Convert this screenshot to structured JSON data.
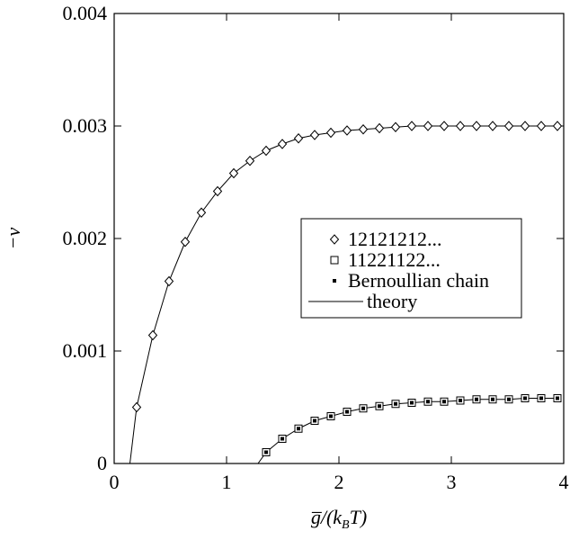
{
  "chart_data": {
    "type": "scatter-line",
    "xlabel": [
      "g̅/(k",
      "B",
      "T)"
    ],
    "ylabel": "−ν",
    "xlim": [
      0,
      4
    ],
    "ylim": [
      0,
      0.004
    ],
    "xticks": [
      0,
      1,
      2,
      3,
      4
    ],
    "yticks": [
      0,
      0.001,
      0.002,
      0.003,
      0.004
    ],
    "series": [
      {
        "name": "12121212...",
        "marker": "diamond",
        "color": "#000",
        "x": [
          0.2,
          0.344,
          0.488,
          0.632,
          0.776,
          0.92,
          1.064,
          1.208,
          1.352,
          1.496,
          1.64,
          1.784,
          1.928,
          2.072,
          2.216,
          2.36,
          2.504,
          2.648,
          2.792,
          2.936,
          3.08,
          3.224,
          3.368,
          3.512,
          3.656,
          3.8,
          3.944
        ],
        "values": [
          0.0005,
          0.00114,
          0.00162,
          0.00197,
          0.00223,
          0.00242,
          0.00258,
          0.00269,
          0.00278,
          0.00284,
          0.00289,
          0.00292,
          0.00294,
          0.00296,
          0.00297,
          0.00298,
          0.00299,
          0.003,
          0.003,
          0.003,
          0.003,
          0.003,
          0.003,
          0.003,
          0.003,
          0.003,
          0.003
        ]
      },
      {
        "name": "11221122...",
        "marker": "square",
        "color": "#000",
        "x": [
          1.352,
          1.496,
          1.64,
          1.784,
          1.928,
          2.072,
          2.216,
          2.36,
          2.504,
          2.648,
          2.792,
          2.936,
          3.08,
          3.224,
          3.368,
          3.512,
          3.656,
          3.8,
          3.944
        ],
        "values": [
          0.0001,
          0.00022,
          0.00031,
          0.00038,
          0.00042,
          0.00046,
          0.00049,
          0.00051,
          0.00053,
          0.00054,
          0.00055,
          0.00055,
          0.00056,
          0.00057,
          0.00057,
          0.00057,
          0.00058,
          0.00058,
          0.00058
        ]
      },
      {
        "name": "Bernoullian chain",
        "marker": "dot",
        "color": "#000",
        "x": [
          1.352,
          1.496,
          1.64,
          1.784,
          1.928,
          2.072,
          2.216,
          2.36,
          2.504,
          2.648,
          2.792,
          2.936,
          3.08,
          3.224,
          3.368,
          3.512,
          3.656,
          3.8,
          3.944
        ],
        "values": [
          0.0001,
          0.00022,
          0.00031,
          0.00038,
          0.00042,
          0.00046,
          0.00049,
          0.00051,
          0.00053,
          0.00054,
          0.00055,
          0.00055,
          0.00056,
          0.00057,
          0.00057,
          0.00057,
          0.00058,
          0.00058,
          0.00058
        ]
      },
      {
        "name": "theory",
        "marker": "line",
        "color": "#000",
        "x": [
          0.14,
          0.2,
          0.344,
          0.488,
          0.632,
          0.776,
          0.92,
          1.064,
          1.208,
          1.352,
          1.496,
          1.64,
          1.784,
          1.928,
          2.072,
          2.216,
          2.36,
          2.504,
          2.648,
          2.792,
          2.936,
          3.08,
          3.224,
          3.368,
          3.512,
          3.656,
          3.8,
          3.944,
          null,
          1.28,
          1.352,
          1.496,
          1.64,
          1.784,
          1.928,
          2.072,
          2.216,
          2.36,
          2.504,
          2.648,
          2.792,
          2.936,
          3.08,
          3.224,
          3.368,
          3.512,
          3.656,
          3.8,
          3.944
        ],
        "values": [
          0,
          0.0005,
          0.00114,
          0.00162,
          0.00197,
          0.00223,
          0.00242,
          0.00258,
          0.00269,
          0.00278,
          0.00284,
          0.00289,
          0.00292,
          0.00294,
          0.00296,
          0.00297,
          0.00298,
          0.00299,
          0.003,
          0.003,
          0.003,
          0.003,
          0.003,
          0.003,
          0.003,
          0.003,
          0.003,
          0.003,
          null,
          0,
          0.0001,
          0.00022,
          0.00031,
          0.00038,
          0.00042,
          0.00046,
          0.00049,
          0.00051,
          0.00053,
          0.00054,
          0.00055,
          0.00055,
          0.00056,
          0.00057,
          0.00057,
          0.00057,
          0.00058,
          0.00058,
          0.00058
        ]
      }
    ]
  }
}
